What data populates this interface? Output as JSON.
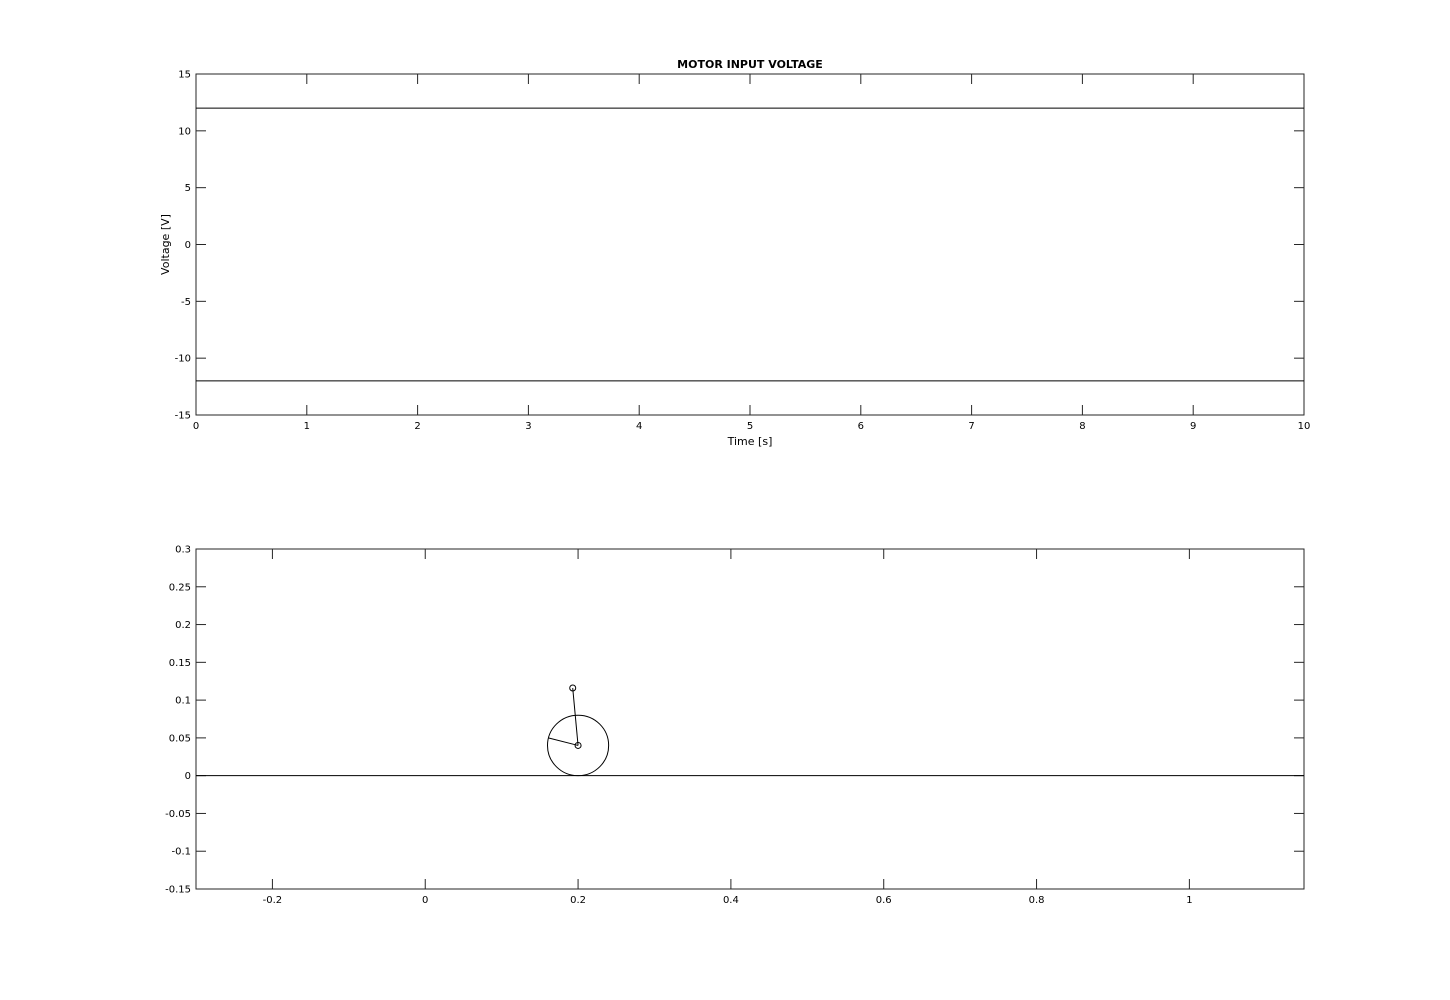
{
  "chart_data": [
    {
      "type": "line",
      "title": "MOTOR INPUT VOLTAGE",
      "xlabel": "Time [s]",
      "ylabel": "Voltage [V]",
      "xlim": [
        0,
        10
      ],
      "ylim": [
        -15,
        15
      ],
      "xticks": [
        0,
        1,
        2,
        3,
        4,
        5,
        6,
        7,
        8,
        9,
        10
      ],
      "yticks": [
        -15,
        -10,
        -5,
        0,
        5,
        10,
        15
      ],
      "grid": false,
      "series": [
        {
          "x": [
            0,
            10
          ],
          "y": [
            12,
            12
          ],
          "color": "#000000"
        },
        {
          "x": [
            0,
            10
          ],
          "y": [
            -12,
            -12
          ],
          "color": "#000000"
        }
      ]
    },
    {
      "type": "line",
      "title": "",
      "xlabel": "",
      "ylabel": "",
      "xlim": [
        -0.3,
        1.15
      ],
      "ylim": [
        -0.15,
        0.3
      ],
      "xticks": [
        -0.2,
        0,
        0.2,
        0.4,
        0.6,
        0.8,
        1
      ],
      "yticks": [
        -0.15,
        -0.1,
        -0.05,
        0,
        0.05,
        0.1,
        0.15,
        0.2,
        0.25,
        0.3
      ],
      "grid": false,
      "series": [
        {
          "x": [
            -0.3,
            1.15
          ],
          "y": [
            0,
            0
          ],
          "color": "#000000"
        },
        {
          "x": [
            0.2,
            0.193
          ],
          "y": [
            0.04,
            0.116
          ],
          "color": "#000000"
        },
        {
          "x": [
            0.2,
            0.161
          ],
          "y": [
            0.04,
            0.05
          ],
          "color": "#000000"
        }
      ],
      "circles": [
        {
          "cx": 0.2,
          "cy": 0.04,
          "r": 0.04
        }
      ],
      "markers": [
        {
          "x": 0.2,
          "y": 0.04
        },
        {
          "x": 0.193,
          "y": 0.116
        }
      ]
    }
  ]
}
